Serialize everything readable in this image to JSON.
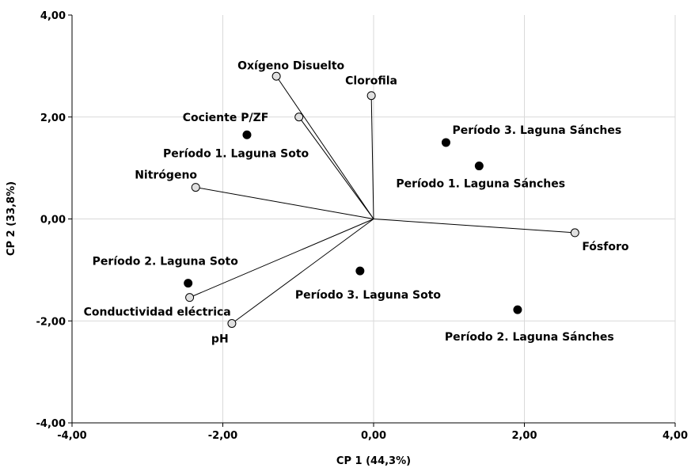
{
  "chart_data": {
    "type": "scatter",
    "subtype": "biplot",
    "xlabel": "CP 1 (44,3%)",
    "ylabel": "CP 2 (33,8%)",
    "xlim": [
      -4,
      4
    ],
    "ylim": [
      -4,
      4
    ],
    "x_ticks": [
      "-4,00",
      "-2,00",
      "0,00",
      "2,00",
      "4,00"
    ],
    "y_ticks": [
      "-4,00",
      "-2,00",
      "0,00",
      "2,00",
      "4,00"
    ],
    "grid": true,
    "series": [
      {
        "kind": "observations",
        "marker": "filled-circle",
        "color": "#000000",
        "points": [
          {
            "label": "Período 1. Laguna Soto",
            "x": -1.68,
            "y": 1.65
          },
          {
            "label": "Período 2. Laguna Soto",
            "x": -2.46,
            "y": -1.26
          },
          {
            "label": "Período 3. Laguna Soto",
            "x": -0.18,
            "y": -1.02
          },
          {
            "label": "Período 1. Laguna Sánches",
            "x": 1.4,
            "y": 1.04
          },
          {
            "label": "Período 2. Laguna Sánches",
            "x": 1.91,
            "y": -1.78
          },
          {
            "label": "Período 3. Laguna Sánches",
            "x": 0.96,
            "y": 1.5
          }
        ]
      },
      {
        "kind": "loadings",
        "marker": "open-circle",
        "fill": "#e0e0e0",
        "vector_from_origin": true,
        "points": [
          {
            "label": "Oxígeno Disuelto",
            "x": -1.29,
            "y": 2.8
          },
          {
            "label": "Clorofila",
            "x": -0.03,
            "y": 2.42
          },
          {
            "label": "Cociente P/ZF",
            "x": -0.99,
            "y": 2.0
          },
          {
            "label": "Nitrógeno",
            "x": -2.36,
            "y": 0.62
          },
          {
            "label": "Fósforo",
            "x": 2.67,
            "y": -0.27
          },
          {
            "label": "Conductividad eléctrica",
            "x": -2.44,
            "y": -1.54
          },
          {
            "label": "pH",
            "x": -1.88,
            "y": -2.05
          }
        ]
      }
    ]
  }
}
